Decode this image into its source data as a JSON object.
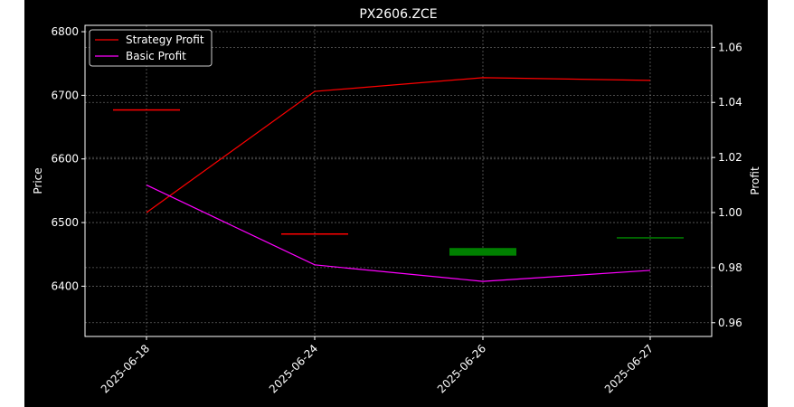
{
  "chart_data": {
    "type": "line",
    "title": "PX2606.ZCE",
    "background": "#000000",
    "grid": true,
    "legend_position": "upper-left",
    "categories": [
      "2025-06-18",
      "2025-06-24",
      "2025-06-26",
      "2025-06-27"
    ],
    "left_axis": {
      "label": "Price",
      "ticks": [
        6400,
        6500,
        6600,
        6700,
        6800
      ],
      "tick_labels": [
        "6400",
        "6500",
        "6600",
        "6700",
        "6800"
      ],
      "range": [
        6321,
        6810
      ]
    },
    "right_axis": {
      "label": "Profit",
      "ticks": [
        0.96,
        0.98,
        1.0,
        1.02,
        1.04,
        1.06
      ],
      "tick_labels": [
        "0.96",
        "0.98",
        "1.00",
        "1.02",
        "1.04",
        "1.06"
      ],
      "range": [
        0.955,
        1.068
      ]
    },
    "candles": [
      {
        "date": "2025-06-18",
        "open": 6677,
        "close": 6677,
        "color": "#ff0000"
      },
      {
        "date": "2025-06-24",
        "open": 6482,
        "close": 6482,
        "color": "#ff0000"
      },
      {
        "date": "2025-06-26",
        "open": 6460,
        "close": 6448,
        "color": "#008000"
      },
      {
        "date": "2025-06-27",
        "open": 6476,
        "close": 6474,
        "color": "#008000"
      }
    ],
    "series": [
      {
        "name": "Strategy Profit",
        "axis": "right",
        "color": "#ff0000",
        "values": [
          1.0,
          1.044,
          1.049,
          1.048
        ]
      },
      {
        "name": "Basic Profit",
        "axis": "right",
        "color": "#ff00ff",
        "values": [
          1.01,
          0.981,
          0.975,
          0.979
        ]
      }
    ]
  }
}
